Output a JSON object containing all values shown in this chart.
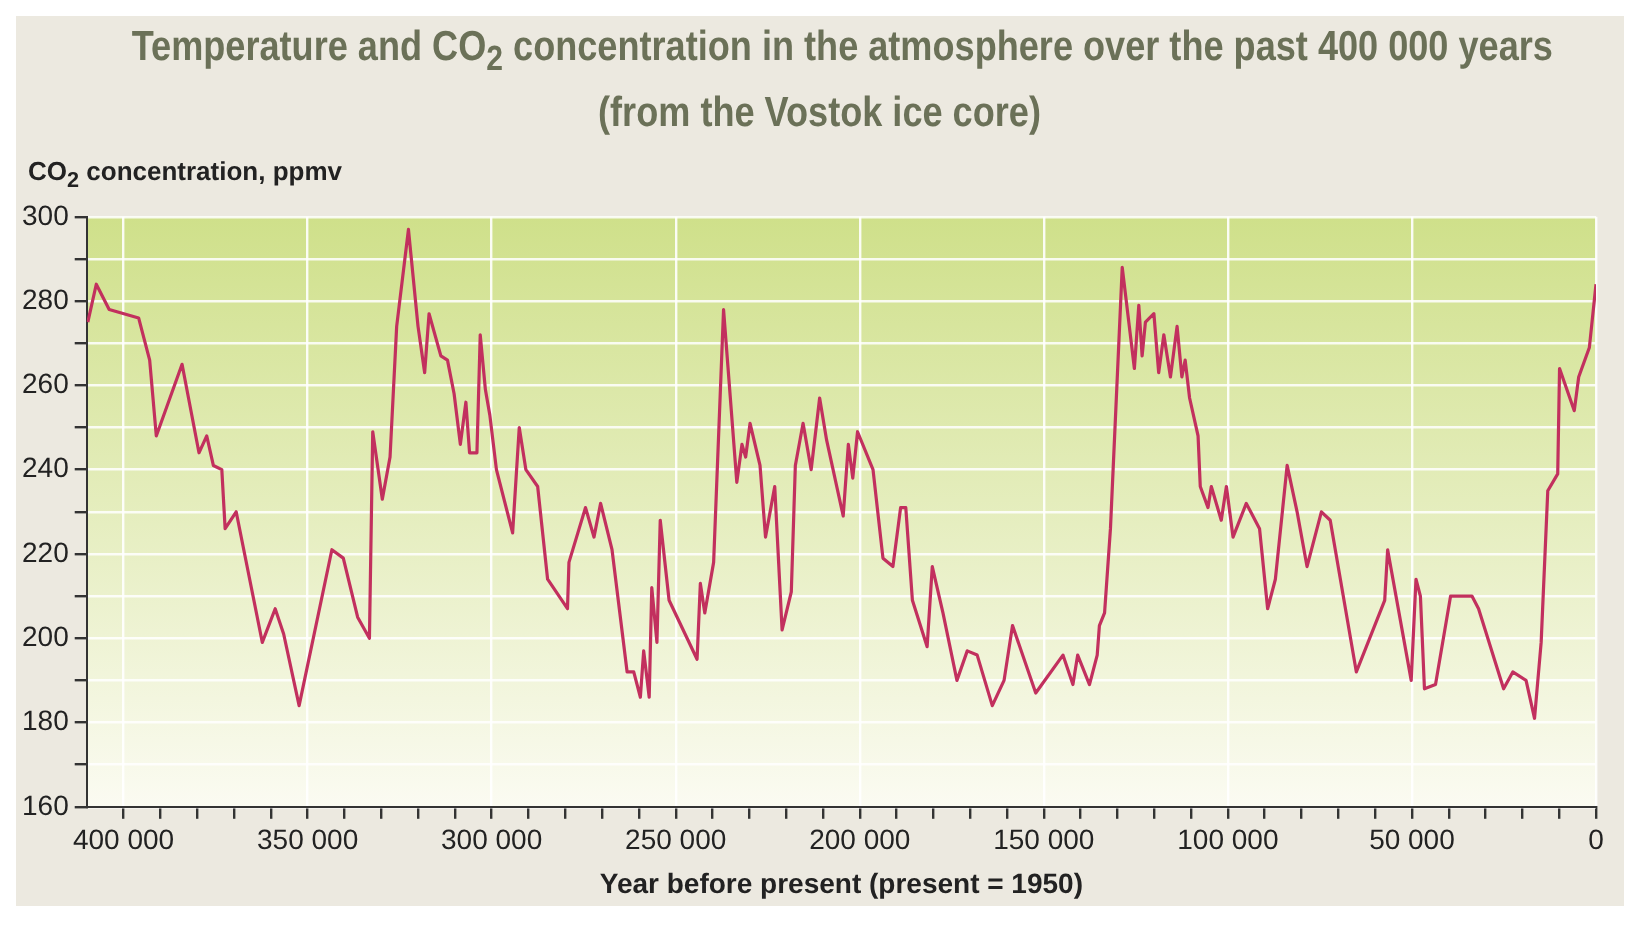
{
  "chart_data": {
    "type": "line",
    "title": "Temperature and CO$_{2}$ concentration in the atmosphere over the past 400 000 years\n(from the Vostok ice core)",
    "ylabel": "CO$_{2}$ concentration, ppmv",
    "xlabel": "Year before present (present = 1950)",
    "xlim": [
      410000,
      0
    ],
    "ylim": [
      160,
      300
    ],
    "xticks": [
      {
        "value": 400000,
        "label": "400 000"
      },
      {
        "value": 390000,
        "label": null
      },
      {
        "value": 380000,
        "label": null
      },
      {
        "value": 370000,
        "label": null
      },
      {
        "value": 360000,
        "label": null
      },
      {
        "value": 350000,
        "label": "350 000"
      },
      {
        "value": 340000,
        "label": null
      },
      {
        "value": 330000,
        "label": null
      },
      {
        "value": 320000,
        "label": null
      },
      {
        "value": 310000,
        "label": null
      },
      {
        "value": 300000,
        "label": "300 000"
      },
      {
        "value": 290000,
        "label": null
      },
      {
        "value": 280000,
        "label": null
      },
      {
        "value": 270000,
        "label": null
      },
      {
        "value": 260000,
        "label": null
      },
      {
        "value": 250000,
        "label": "250 000"
      },
      {
        "value": 240000,
        "label": null
      },
      {
        "value": 230000,
        "label": null
      },
      {
        "value": 220000,
        "label": null
      },
      {
        "value": 210000,
        "label": null
      },
      {
        "value": 200000,
        "label": "200 000"
      },
      {
        "value": 190000,
        "label": null
      },
      {
        "value": 180000,
        "label": null
      },
      {
        "value": 170000,
        "label": null
      },
      {
        "value": 160000,
        "label": null
      },
      {
        "value": 150000,
        "label": "150 000"
      },
      {
        "value": 140000,
        "label": null
      },
      {
        "value": 130000,
        "label": null
      },
      {
        "value": 120000,
        "label": null
      },
      {
        "value": 110000,
        "label": null
      },
      {
        "value": 100000,
        "label": "100 000"
      },
      {
        "value": 90000,
        "label": null
      },
      {
        "value": 80000,
        "label": null
      },
      {
        "value": 70000,
        "label": null
      },
      {
        "value": 60000,
        "label": null
      },
      {
        "value": 50000,
        "label": "50 000"
      },
      {
        "value": 40000,
        "label": null
      },
      {
        "value": 30000,
        "label": null
      },
      {
        "value": 20000,
        "label": null
      },
      {
        "value": 10000,
        "label": null
      },
      0
    ],
    "yticks": [
      160,
      {
        "value": 170,
        "label": null
      },
      180,
      {
        "value": 190,
        "label": null
      },
      200,
      {
        "value": 210,
        "label": null
      },
      220,
      {
        "value": 230,
        "label": null
      },
      240,
      {
        "value": 250,
        "label": null
      },
      260,
      {
        "value": 270,
        "label": null
      },
      280,
      {
        "value": 290,
        "label": null
      },
      300
    ],
    "grid": true,
    "legend": false,
    "marker": "none",
    "line_style": "solid",
    "series": [
      {
        "color": "#c2305e",
        "x": [
          409700,
          407400,
          403900,
          395900,
          392900,
          391100,
          384100,
          379500,
          377400,
          375600,
          373300,
          372400,
          369400,
          362300,
          358800,
          356500,
          352300,
          343400,
          340300,
          336400,
          333200,
          332300,
          329700,
          327600,
          325800,
          322600,
          320000,
          318200,
          317000,
          313800,
          312000,
          310200,
          308500,
          307000,
          306000,
          304000,
          303100,
          301700,
          300500,
          298700,
          294300,
          292500,
          290700,
          287500,
          284800,
          279400,
          279000,
          274500,
          272200,
          270400,
          267300,
          263200,
          261400,
          259600,
          258700,
          257200,
          256500,
          255100,
          254200,
          251800,
          244200,
          243300,
          242100,
          239700,
          237000,
          233400,
          232000,
          231000,
          229800,
          227100,
          225600,
          223100,
          221100,
          218600,
          217500,
          215400,
          213200,
          210900,
          209000,
          204500,
          203100,
          201900,
          200600,
          196400,
          193700,
          191000,
          188900,
          187500,
          185700,
          181700,
          180300,
          177400,
          173600,
          170800,
          168100,
          164000,
          160800,
          158500,
          152200,
          144800,
          142100,
          140800,
          137600,
          135500,
          134900,
          133500,
          131900,
          128700,
          125400,
          124200,
          123300,
          122400,
          120100,
          118800,
          117400,
          115600,
          113800,
          112500,
          111600,
          110400,
          108100,
          107500,
          105400,
          104500,
          101800,
          100400,
          98600,
          95000,
          91400,
          89200,
          87100,
          83900,
          81200,
          78500,
          74600,
          72200,
          65100,
          57400,
          56600,
          50200,
          48900,
          47700,
          46600,
          43600,
          39500,
          33700,
          31900,
          25100,
          22600,
          19000,
          16700,
          14900,
          13100,
          10400,
          9900,
          5900,
          4700,
          1800,
          0
        ],
        "values": [
          275,
          284,
          278,
          276,
          266,
          248,
          265,
          244,
          248,
          241,
          240,
          226,
          230,
          199,
          207,
          201,
          184,
          221,
          219,
          205,
          200,
          249,
          233,
          243,
          274,
          297,
          274,
          263,
          277,
          267,
          266,
          258,
          246,
          256,
          244,
          244,
          272,
          259,
          253,
          240,
          225,
          250,
          240,
          236,
          214,
          207,
          218,
          231,
          224,
          232,
          221,
          192,
          192,
          186,
          197,
          186,
          212,
          199,
          228,
          209,
          195,
          213,
          206,
          218,
          278,
          237,
          246,
          243,
          251,
          241,
          224,
          236,
          202,
          211,
          241,
          251,
          240,
          257,
          247,
          229,
          246,
          238,
          249,
          240,
          219,
          217,
          231,
          231,
          209,
          198,
          217,
          206,
          190,
          197,
          196,
          184,
          190,
          203,
          187,
          196,
          189,
          196,
          189,
          196,
          203,
          206,
          226,
          288,
          264,
          279,
          267,
          275,
          277,
          263,
          272,
          262,
          274,
          262,
          266,
          257,
          248,
          236,
          231,
          236,
          228,
          236,
          224,
          232,
          226,
          207,
          214,
          241,
          230,
          217,
          230,
          228,
          192,
          209,
          221,
          190,
          214,
          210,
          188,
          189,
          210,
          210,
          207,
          188,
          192,
          190,
          181,
          199,
          235,
          239,
          264,
          254,
          262,
          269,
          284
        ]
      }
    ]
  }
}
